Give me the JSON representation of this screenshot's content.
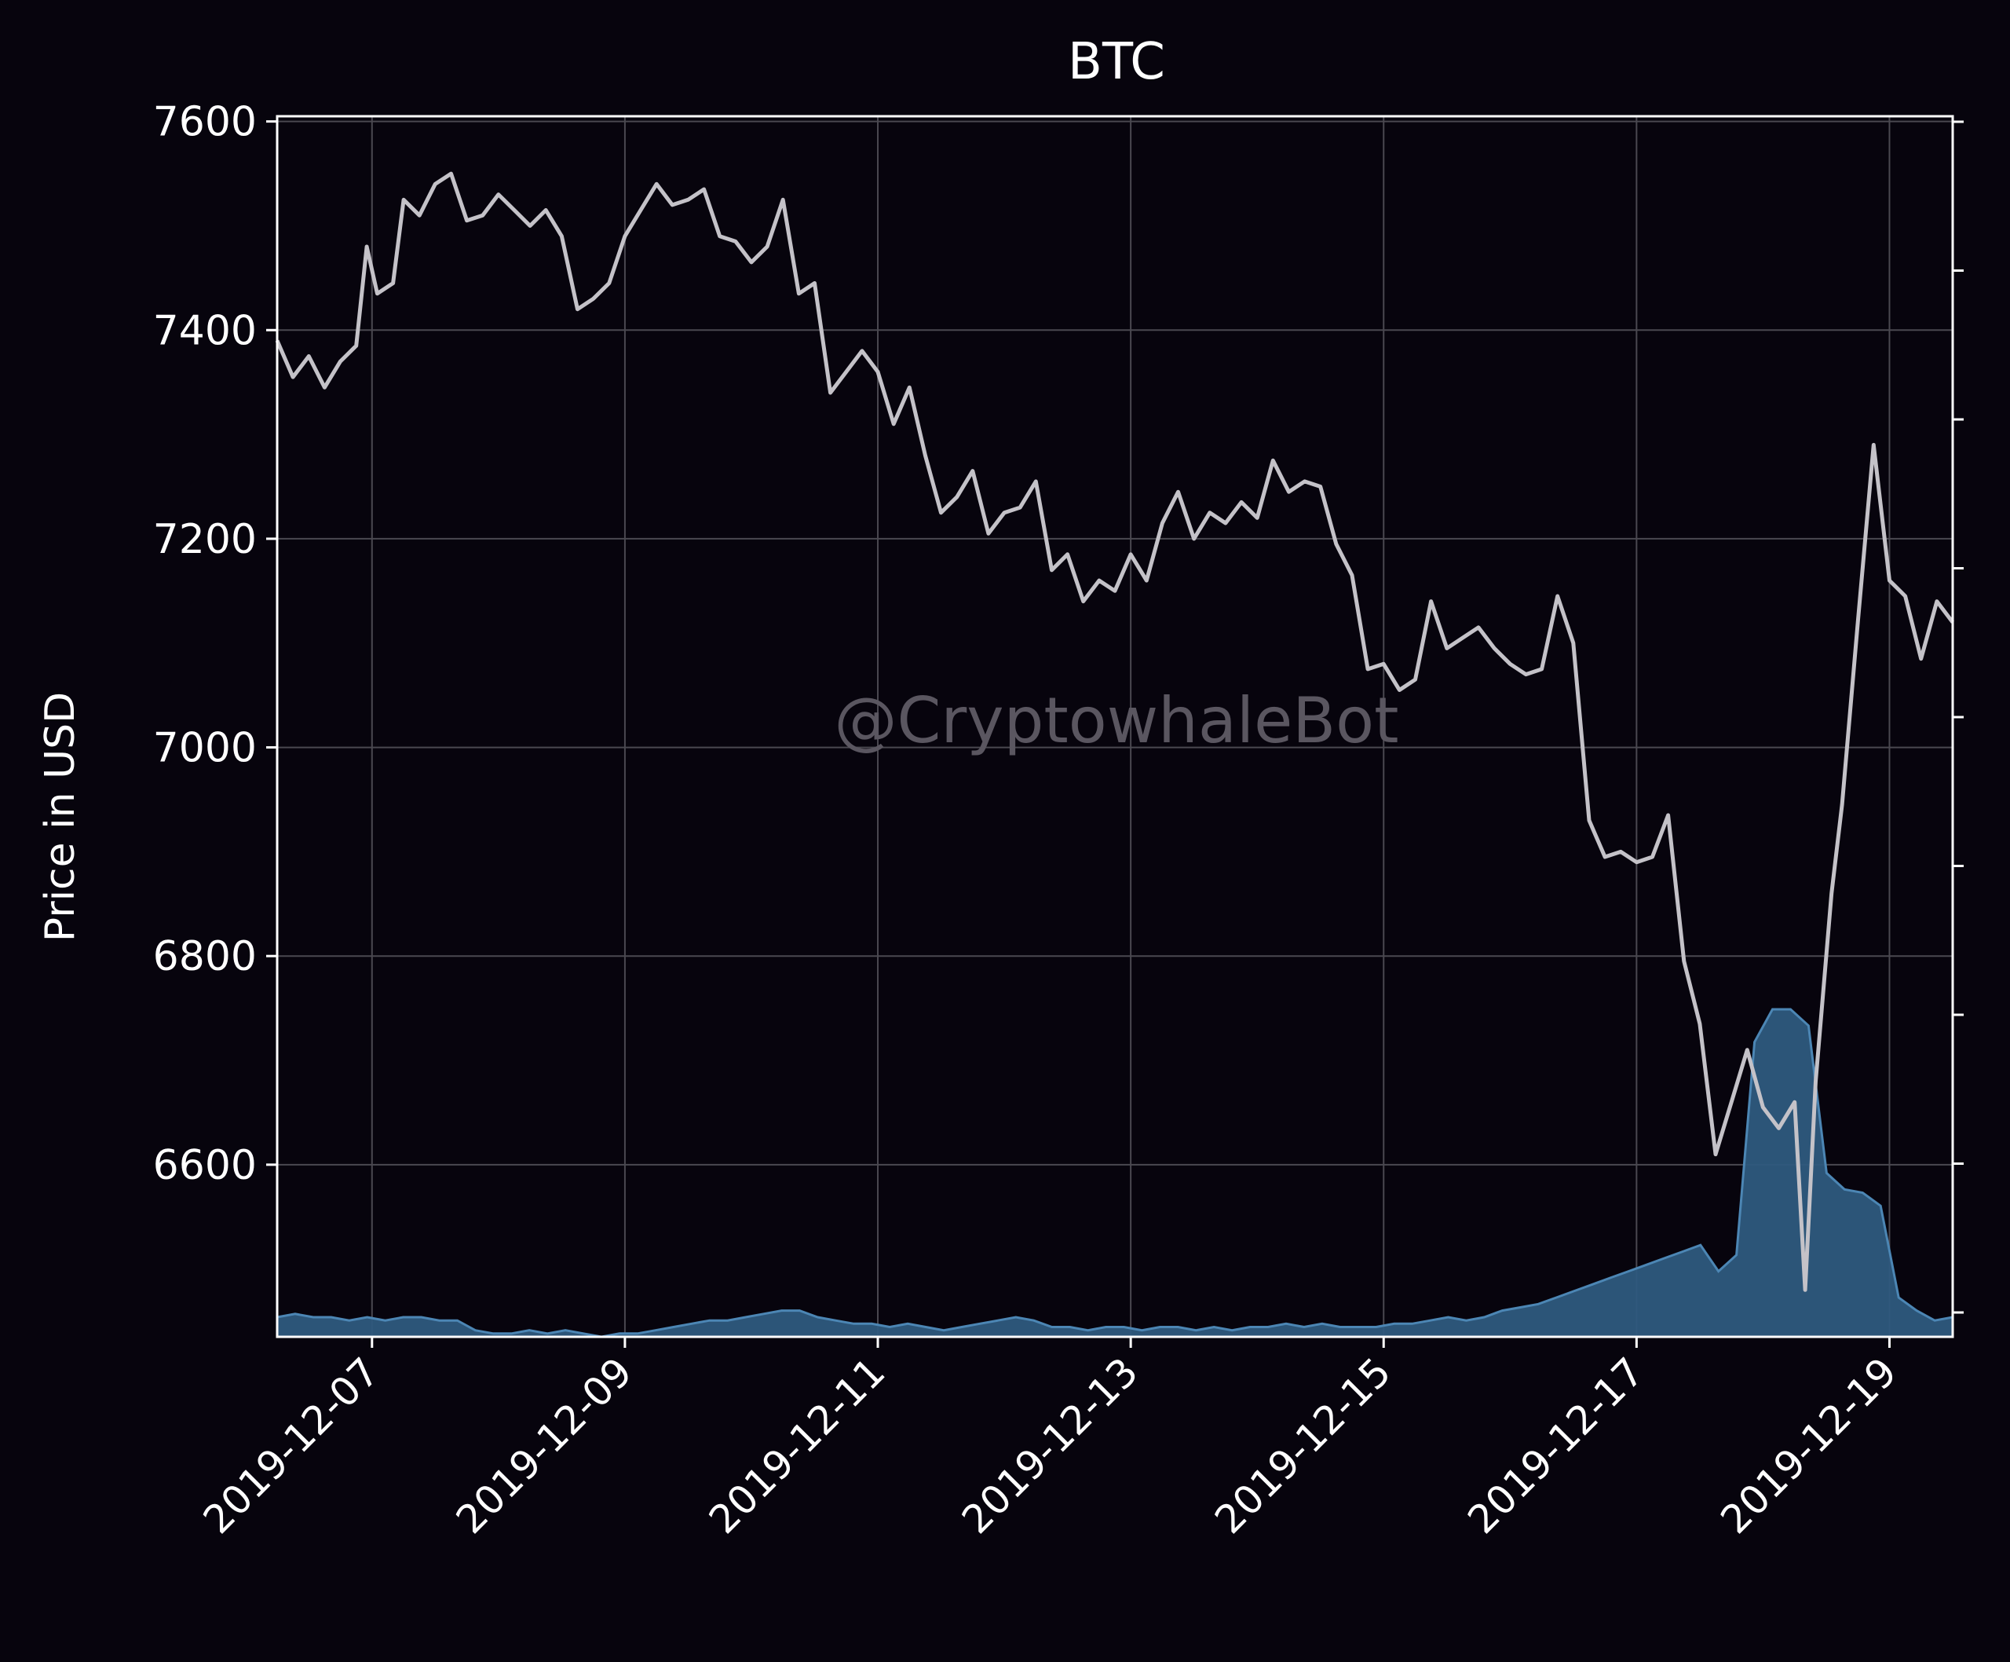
{
  "chart_data": {
    "type": "line",
    "title": "BTC",
    "ylabel": "Price in USD",
    "xlabel": "",
    "watermark": "@CryptowhaleBot",
    "x_range": [
      "2019-12-06 06:00",
      "2019-12-19 12:00"
    ],
    "ylim": [
      6435,
      7605
    ],
    "y_ticks": [
      6600,
      6800,
      7000,
      7200,
      7400,
      7600
    ],
    "x_ticks": [
      "2019-12-07",
      "2019-12-09",
      "2019-12-11",
      "2019-12-13",
      "2019-12-15",
      "2019-12-17",
      "2019-12-19"
    ],
    "grid": true,
    "colors": {
      "background": "#07040d",
      "price": "#c4c2c8",
      "volume_fill": "#2e5a7e",
      "volume_line": "#4c86b4",
      "axes": "#ffffff",
      "grid": "#4a4850",
      "watermark": "#5a5660"
    },
    "series": [
      {
        "role": "price",
        "points": [
          [
            "2019-12-06 06:00",
            7390
          ],
          [
            "2019-12-06 09:00",
            7355
          ],
          [
            "2019-12-06 12:00",
            7375
          ],
          [
            "2019-12-06 15:00",
            7345
          ],
          [
            "2019-12-06 18:00",
            7370
          ],
          [
            "2019-12-06 21:00",
            7385
          ],
          [
            "2019-12-06 23:00",
            7480
          ],
          [
            "2019-12-07 01:00",
            7435
          ],
          [
            "2019-12-07 04:00",
            7445
          ],
          [
            "2019-12-07 06:00",
            7525
          ],
          [
            "2019-12-07 09:00",
            7510
          ],
          [
            "2019-12-07 12:00",
            7540
          ],
          [
            "2019-12-07 15:00",
            7550
          ],
          [
            "2019-12-07 18:00",
            7505
          ],
          [
            "2019-12-07 21:00",
            7510
          ],
          [
            "2019-12-08 00:00",
            7530
          ],
          [
            "2019-12-08 03:00",
            7515
          ],
          [
            "2019-12-08 06:00",
            7500
          ],
          [
            "2019-12-08 09:00",
            7515
          ],
          [
            "2019-12-08 12:00",
            7490
          ],
          [
            "2019-12-08 15:00",
            7420
          ],
          [
            "2019-12-08 18:00",
            7430
          ],
          [
            "2019-12-08 21:00",
            7445
          ],
          [
            "2019-12-09 00:00",
            7490
          ],
          [
            "2019-12-09 03:00",
            7515
          ],
          [
            "2019-12-09 06:00",
            7540
          ],
          [
            "2019-12-09 09:00",
            7520
          ],
          [
            "2019-12-09 12:00",
            7525
          ],
          [
            "2019-12-09 15:00",
            7535
          ],
          [
            "2019-12-09 18:00",
            7490
          ],
          [
            "2019-12-09 21:00",
            7485
          ],
          [
            "2019-12-10 00:00",
            7465
          ],
          [
            "2019-12-10 03:00",
            7480
          ],
          [
            "2019-12-10 06:00",
            7525
          ],
          [
            "2019-12-10 09:00",
            7435
          ],
          [
            "2019-12-10 12:00",
            7445
          ],
          [
            "2019-12-10 15:00",
            7340
          ],
          [
            "2019-12-10 18:00",
            7360
          ],
          [
            "2019-12-10 21:00",
            7380
          ],
          [
            "2019-12-11 00:00",
            7360
          ],
          [
            "2019-12-11 03:00",
            7310
          ],
          [
            "2019-12-11 06:00",
            7345
          ],
          [
            "2019-12-11 09:00",
            7280
          ],
          [
            "2019-12-11 12:00",
            7225
          ],
          [
            "2019-12-11 15:00",
            7240
          ],
          [
            "2019-12-11 18:00",
            7265
          ],
          [
            "2019-12-11 21:00",
            7205
          ],
          [
            "2019-12-12 00:00",
            7225
          ],
          [
            "2019-12-12 03:00",
            7230
          ],
          [
            "2019-12-12 06:00",
            7255
          ],
          [
            "2019-12-12 09:00",
            7170
          ],
          [
            "2019-12-12 12:00",
            7185
          ],
          [
            "2019-12-12 15:00",
            7140
          ],
          [
            "2019-12-12 18:00",
            7160
          ],
          [
            "2019-12-12 21:00",
            7150
          ],
          [
            "2019-12-13 00:00",
            7185
          ],
          [
            "2019-12-13 03:00",
            7160
          ],
          [
            "2019-12-13 06:00",
            7215
          ],
          [
            "2019-12-13 09:00",
            7245
          ],
          [
            "2019-12-13 12:00",
            7200
          ],
          [
            "2019-12-13 15:00",
            7225
          ],
          [
            "2019-12-13 18:00",
            7215
          ],
          [
            "2019-12-13 21:00",
            7235
          ],
          [
            "2019-12-14 00:00",
            7220
          ],
          [
            "2019-12-14 03:00",
            7275
          ],
          [
            "2019-12-14 06:00",
            7245
          ],
          [
            "2019-12-14 09:00",
            7255
          ],
          [
            "2019-12-14 12:00",
            7250
          ],
          [
            "2019-12-14 15:00",
            7195
          ],
          [
            "2019-12-14 18:00",
            7165
          ],
          [
            "2019-12-14 21:00",
            7075
          ],
          [
            "2019-12-15 00:00",
            7080
          ],
          [
            "2019-12-15 03:00",
            7055
          ],
          [
            "2019-12-15 06:00",
            7065
          ],
          [
            "2019-12-15 09:00",
            7140
          ],
          [
            "2019-12-15 12:00",
            7095
          ],
          [
            "2019-12-15 15:00",
            7105
          ],
          [
            "2019-12-15 18:00",
            7115
          ],
          [
            "2019-12-15 21:00",
            7095
          ],
          [
            "2019-12-16 00:00",
            7080
          ],
          [
            "2019-12-16 03:00",
            7070
          ],
          [
            "2019-12-16 06:00",
            7075
          ],
          [
            "2019-12-16 09:00",
            7145
          ],
          [
            "2019-12-16 12:00",
            7100
          ],
          [
            "2019-12-16 15:00",
            6930
          ],
          [
            "2019-12-16 18:00",
            6895
          ],
          [
            "2019-12-16 21:00",
            6900
          ],
          [
            "2019-12-17 00:00",
            6890
          ],
          [
            "2019-12-17 03:00",
            6895
          ],
          [
            "2019-12-17 06:00",
            6935
          ],
          [
            "2019-12-17 09:00",
            6795
          ],
          [
            "2019-12-17 12:00",
            6735
          ],
          [
            "2019-12-17 15:00",
            6610
          ],
          [
            "2019-12-17 18:00",
            6660
          ],
          [
            "2019-12-17 21:00",
            6710
          ],
          [
            "2019-12-18 00:00",
            6655
          ],
          [
            "2019-12-18 03:00",
            6635
          ],
          [
            "2019-12-18 06:00",
            6660
          ],
          [
            "2019-12-18 08:00",
            6480
          ],
          [
            "2019-12-18 10:00",
            6680
          ],
          [
            "2019-12-18 13:00",
            6860
          ],
          [
            "2019-12-18 15:00",
            6945
          ],
          [
            "2019-12-18 18:00",
            7120
          ],
          [
            "2019-12-18 21:00",
            7290
          ],
          [
            "2019-12-19 00:00",
            7160
          ],
          [
            "2019-12-19 03:00",
            7145
          ],
          [
            "2019-12-19 06:00",
            7085
          ],
          [
            "2019-12-19 09:00",
            7140
          ],
          [
            "2019-12-19 12:00",
            7120
          ]
        ]
      },
      {
        "role": "volume",
        "values_relative": [
          0.06,
          0.07,
          0.06,
          0.06,
          0.05,
          0.06,
          0.05,
          0.06,
          0.06,
          0.05,
          0.05,
          0.02,
          0.01,
          0.01,
          0.02,
          0.01,
          0.02,
          0.01,
          0.0,
          0.01,
          0.01,
          0.02,
          0.03,
          0.04,
          0.05,
          0.05,
          0.06,
          0.07,
          0.08,
          0.08,
          0.06,
          0.05,
          0.04,
          0.04,
          0.03,
          0.04,
          0.03,
          0.02,
          0.03,
          0.04,
          0.05,
          0.06,
          0.05,
          0.03,
          0.03,
          0.02,
          0.03,
          0.03,
          0.02,
          0.03,
          0.03,
          0.02,
          0.03,
          0.02,
          0.03,
          0.03,
          0.04,
          0.03,
          0.04,
          0.03,
          0.03,
          0.03,
          0.04,
          0.04,
          0.05,
          0.06,
          0.05,
          0.06,
          0.08,
          0.09,
          0.1,
          0.12,
          0.14,
          0.16,
          0.18,
          0.2,
          0.22,
          0.24,
          0.26,
          0.28,
          0.2,
          0.25,
          0.9,
          1.0,
          1.0,
          0.95,
          0.5,
          0.45,
          0.44,
          0.4,
          0.12,
          0.08,
          0.05,
          0.06
        ]
      }
    ]
  }
}
